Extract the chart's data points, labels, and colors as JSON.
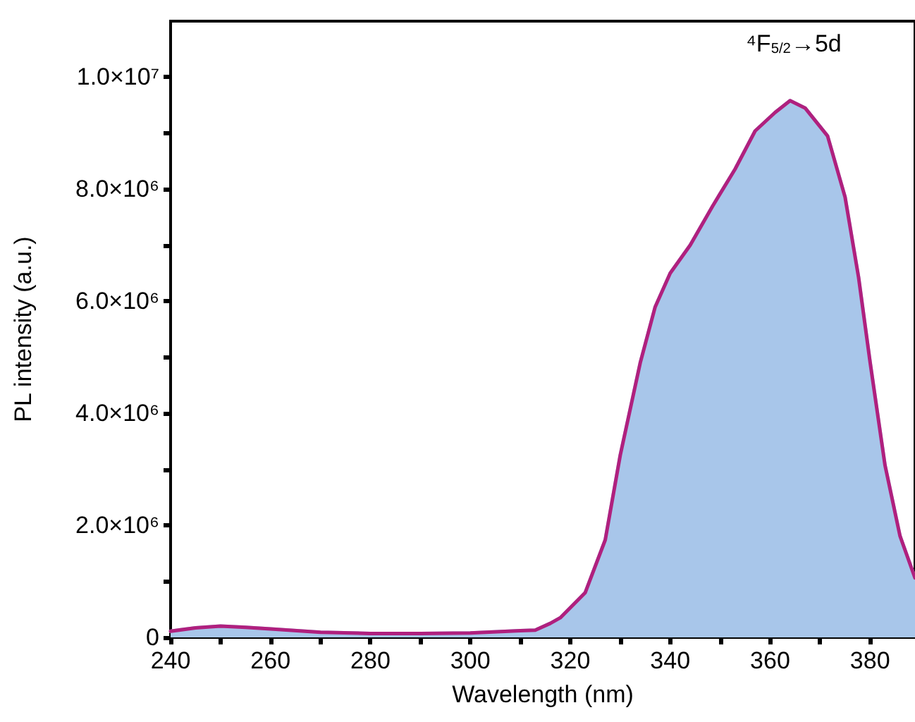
{
  "chart_data": {
    "type": "area",
    "xlabel": "Wavelength (nm)",
    "ylabel": "PL intensity (a.u.)",
    "x": [
      240,
      245,
      250,
      255,
      260,
      270,
      280,
      290,
      300,
      310,
      313,
      316,
      318,
      323,
      327,
      330,
      334,
      337,
      340,
      344,
      348.5,
      353,
      357,
      361,
      364,
      367,
      371.5,
      375,
      377.7,
      380,
      383,
      386,
      389
    ],
    "series": [
      {
        "color": "#a8c6ea",
        "values": [
          110000,
          170000,
          200000,
          180000,
          150000,
          90000,
          70000,
          70000,
          80000,
          120000,
          130000,
          250000,
          350000,
          800000,
          1740000,
          3250000,
          4900000,
          5900000,
          6500000,
          7000000,
          7700000,
          8360000,
          9040000,
          9370000,
          9580000,
          9450000,
          8950000,
          7860000,
          6430000,
          4920000,
          3070000,
          1810000,
          1060000
        ]
      },
      {
        "type": "line",
        "color": "#b0207e",
        "values": [
          110000,
          170000,
          200000,
          180000,
          150000,
          90000,
          70000,
          70000,
          80000,
          120000,
          130000,
          250000,
          350000,
          800000,
          1740000,
          3250000,
          4900000,
          5900000,
          6500000,
          7000000,
          7700000,
          8360000,
          9040000,
          9370000,
          9580000,
          9450000,
          8950000,
          7860000,
          6430000,
          4920000,
          3070000,
          1810000,
          1060000
        ]
      }
    ],
    "xlim": [
      240,
      389
    ],
    "xticks": [
      240,
      260,
      280,
      300,
      320,
      340,
      360,
      380
    ],
    "ylim": [
      0,
      11000000
    ],
    "yticks": [
      0,
      {
        "value": 2000000,
        "label": "2.0×10⁶"
      },
      {
        "value": 4000000,
        "label": "4.0×10⁶"
      },
      {
        "value": 6000000,
        "label": "6.0×10⁶"
      },
      {
        "value": 8000000,
        "label": "8.0×10⁶"
      },
      {
        "value": 10000000,
        "label": "1.0×10⁷"
      }
    ],
    "annotations": [
      "⁴F$_{5/2}$→5d"
    ],
    "grid": false,
    "marker": "none",
    "line_style": "solid"
  }
}
